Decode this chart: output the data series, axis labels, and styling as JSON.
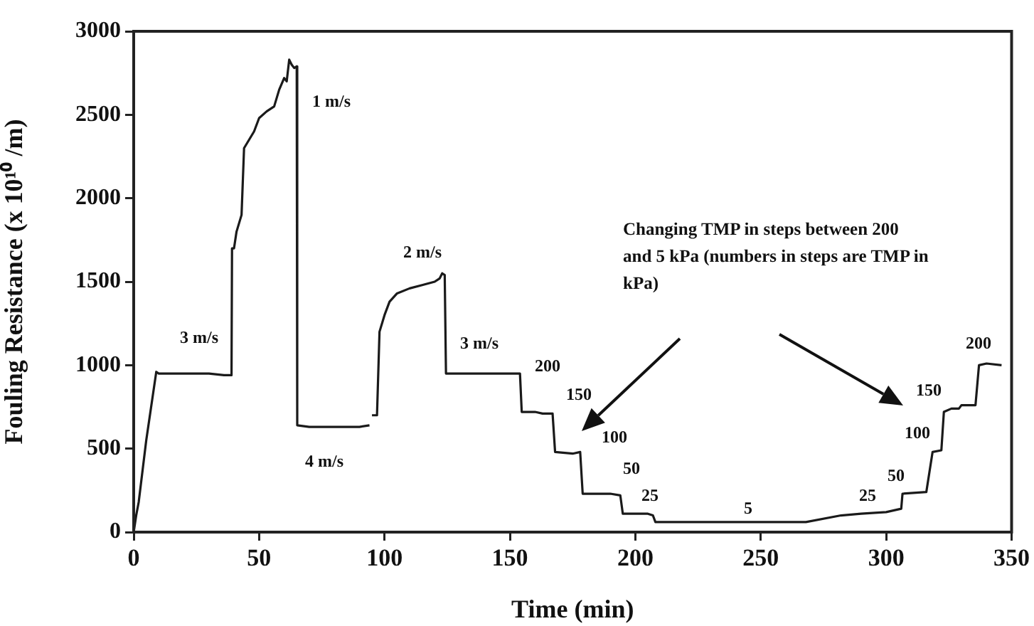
{
  "chart_data": {
    "type": "line",
    "xlabel": "Time (min)",
    "ylabel": "Fouling Resistance (x 10¹⁰ /m)",
    "xlim": [
      0,
      350
    ],
    "xticks": [
      0,
      50,
      100,
      150,
      200,
      250,
      300,
      350
    ],
    "ylim": [
      0,
      3000
    ],
    "yticks": [
      0,
      500,
      1000,
      1500,
      2000,
      2500,
      3000
    ],
    "grid": false,
    "legend": false,
    "marker": "none",
    "line_style": "solid",
    "series": [
      {
        "color": "#1a1a1a",
        "x": [
          0,
          1,
          2,
          5,
          9,
          10,
          20,
          30,
          36,
          38,
          39,
          39.2,
          40,
          41,
          42,
          43,
          44,
          46,
          48,
          50,
          53,
          56,
          58,
          60,
          61,
          62,
          63,
          64,
          65,
          65.2,
          70,
          80,
          90,
          94,
          94.5,
          95,
          97,
          98,
          100,
          102,
          105,
          110,
          115,
          120,
          122,
          123,
          124,
          124.5,
          130,
          140,
          150,
          154,
          154.7,
          160,
          163,
          167,
          168,
          175,
          178,
          179,
          190,
          194,
          195,
          205,
          207,
          208,
          220,
          240,
          260,
          268,
          282,
          290,
          300,
          306,
          306.5,
          316,
          318.5,
          322,
          323,
          326,
          329,
          330,
          335.6,
          337,
          340,
          346
        ],
        "values": [
          0,
          100,
          180,
          550,
          960,
          950,
          950,
          950,
          940,
          940,
          940,
          1700,
          1700,
          1800,
          1850,
          1900,
          2300,
          2350,
          2400,
          2480,
          2520,
          2550,
          2650,
          2720,
          2700,
          2830,
          2800,
          2780,
          2790,
          640,
          630,
          630,
          630,
          640,
          null,
          700,
          700,
          1200,
          1300,
          1380,
          1430,
          1460,
          1480,
          1500,
          1520,
          1550,
          1540,
          950,
          950,
          950,
          950,
          950,
          720,
          720,
          710,
          710,
          480,
          470,
          480,
          230,
          230,
          220,
          110,
          110,
          100,
          60,
          60,
          60,
          60,
          60,
          100,
          110,
          120,
          140,
          230,
          240,
          480,
          490,
          720,
          740,
          740,
          760,
          760,
          1000,
          1010,
          1000
        ]
      }
    ],
    "annotations": [
      "3 m/s",
      "1 m/s",
      "4 m/s",
      "2 m/s",
      "3 m/s",
      "200",
      "150",
      "100",
      "50",
      "25",
      "5",
      "25",
      "50",
      "100",
      "150",
      "200",
      "Changing  TMP in steps between 200 and 5 kPa (numbers in steps are TMP in kPa)"
    ]
  }
}
